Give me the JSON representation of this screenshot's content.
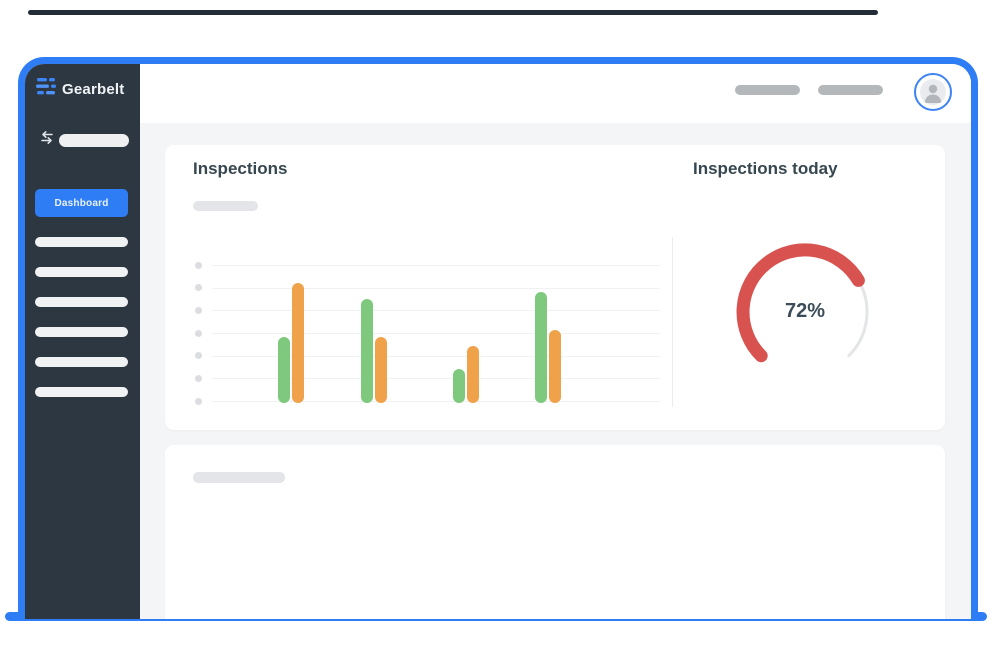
{
  "brand": {
    "name": "Gearbelt"
  },
  "colors": {
    "accent_blue": "#2e7df4",
    "sidebar_bg": "#2d3741",
    "green": "#7ec97d",
    "orange": "#efa24a",
    "red": "#d8534f",
    "gauge_track": "#e4e5e7",
    "title_text": "#37474f"
  },
  "sidebar": {
    "active_item": {
      "label": "Dashboard"
    },
    "placeholder_items": 6
  },
  "header": {
    "placeholder_pills": 2
  },
  "cards": {
    "inspections": {
      "title": "Inspections"
    },
    "inspections_today": {
      "title": "Inspections today",
      "gauge_label": "72%"
    }
  },
  "chart_data": [
    {
      "type": "bar",
      "title": "Inspections",
      "categories": [
        "",
        "",
        "",
        ""
      ],
      "series": [
        {
          "name": "green",
          "color": "#7ec97d",
          "values": [
            29,
            46,
            15,
            49
          ]
        },
        {
          "name": "orange",
          "color": "#efa24a",
          "values": [
            53,
            29,
            25,
            32
          ]
        }
      ],
      "ylim": [
        0,
        60
      ],
      "gridlines": 7,
      "grid": true,
      "legend": false,
      "tick_labels_shown": false
    },
    {
      "type": "gauge",
      "title": "Inspections today",
      "value_percent": 72,
      "label": "72%",
      "arc_total_degrees": 270,
      "color": "#d8534f",
      "track_color": "#e4e5e7"
    }
  ]
}
